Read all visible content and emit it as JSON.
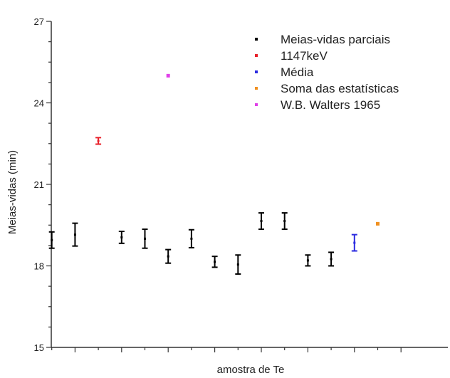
{
  "chart_data": {
    "type": "scatter",
    "xlabel": "amostra de Te",
    "ylabel": "Meias-vidas (min)",
    "ylim": [
      15,
      27
    ],
    "xlim": [
      0,
      16
    ],
    "yticks": [
      "15",
      "18",
      "21",
      "24",
      "27"
    ],
    "legend_position": "top-right",
    "error_bars": true,
    "series": [
      {
        "name": "Meias-vidas parciais",
        "color": "#000000",
        "points": [
          {
            "x": 1,
            "y": 18.95,
            "err": 0.3
          },
          {
            "x": 2,
            "y": 19.15,
            "err": 0.42
          },
          {
            "x": 4,
            "y": 19.05,
            "err": 0.22
          },
          {
            "x": 5,
            "y": 19.0,
            "err": 0.35
          },
          {
            "x": 6,
            "y": 18.35,
            "err": 0.25
          },
          {
            "x": 7,
            "y": 19.0,
            "err": 0.33
          },
          {
            "x": 8,
            "y": 18.15,
            "err": 0.2
          },
          {
            "x": 9,
            "y": 18.05,
            "err": 0.35
          },
          {
            "x": 10,
            "y": 19.65,
            "err": 0.3
          },
          {
            "x": 11,
            "y": 19.65,
            "err": 0.3
          },
          {
            "x": 12,
            "y": 18.2,
            "err": 0.2
          },
          {
            "x": 13,
            "y": 18.25,
            "err": 0.25
          }
        ]
      },
      {
        "name": "1147keV",
        "color": "#e8202a",
        "points": [
          {
            "x": 3,
            "y": 22.6,
            "err": 0.12
          }
        ]
      },
      {
        "name": "Média",
        "color": "#2a2ae0",
        "points": [
          {
            "x": 14,
            "y": 18.85,
            "err": 0.3
          }
        ]
      },
      {
        "name": "Soma das estatísticas",
        "color": "#f09020",
        "points": [
          {
            "x": 15,
            "y": 19.55,
            "err": 0
          }
        ]
      },
      {
        "name": "W.B. Walters 1965",
        "color": "#e040e8",
        "points": [
          {
            "x": 6,
            "y": 25.0,
            "err": 0
          }
        ]
      }
    ]
  }
}
